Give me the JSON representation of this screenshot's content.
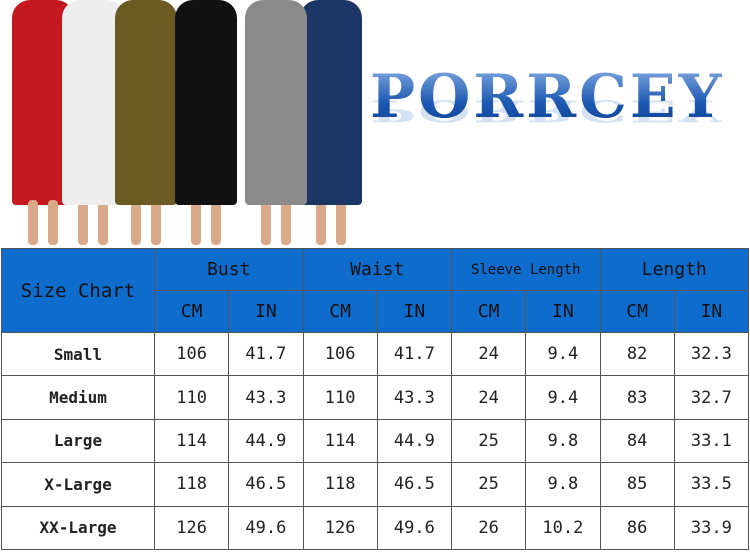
{
  "brand": "PORRCEY",
  "dress_colors": [
    "#c41a1f",
    "#eeeeee",
    "#6b5a22",
    "#111111",
    "#8a8a8a",
    "#1b3566"
  ],
  "size_chart": {
    "title": "Size Chart",
    "groups": [
      "Bust",
      "Waist",
      "Sleeve Length",
      "Length"
    ],
    "units": [
      "CM",
      "IN"
    ],
    "rows": [
      {
        "size": "Small",
        "values": [
          "106",
          "41.7",
          "106",
          "41.7",
          "24",
          "9.4",
          "82",
          "32.3"
        ]
      },
      {
        "size": "Medium",
        "values": [
          "110",
          "43.3",
          "110",
          "43.3",
          "24",
          "9.4",
          "83",
          "32.7"
        ]
      },
      {
        "size": "Large",
        "values": [
          "114",
          "44.9",
          "114",
          "44.9",
          "25",
          "9.8",
          "84",
          "33.1"
        ]
      },
      {
        "size": "X-Large",
        "values": [
          "118",
          "46.5",
          "118",
          "46.5",
          "25",
          "9.8",
          "85",
          "33.5"
        ]
      },
      {
        "size": "XX-Large",
        "values": [
          "126",
          "49.6",
          "126",
          "49.6",
          "26",
          "10.2",
          "86",
          "33.9"
        ]
      }
    ]
  }
}
